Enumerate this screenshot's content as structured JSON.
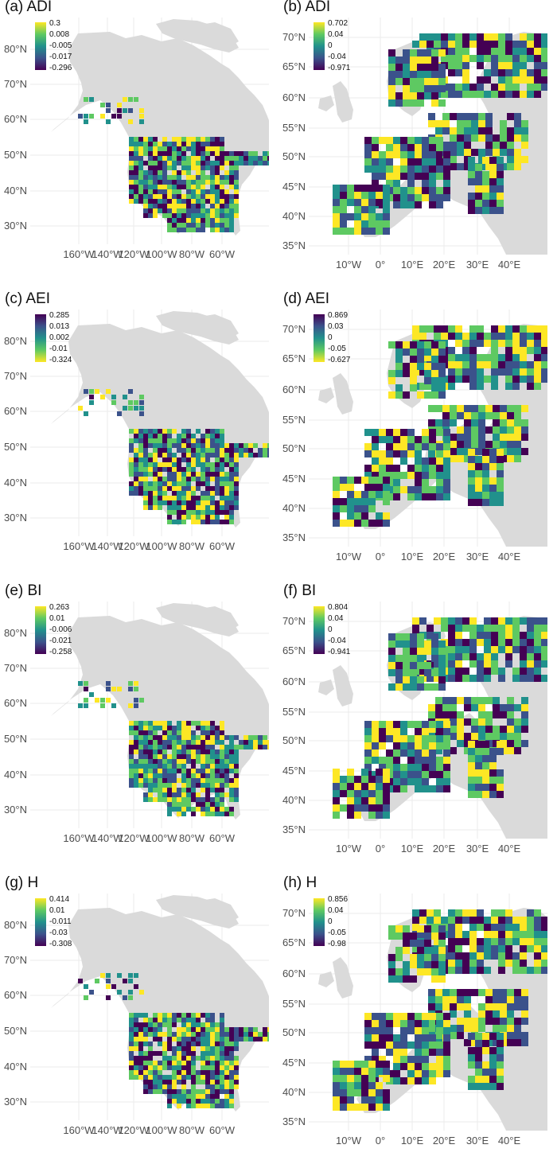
{
  "colors": {
    "land": "#dadada",
    "grid": "#ebebeb",
    "axis_text": "#4d4d4d",
    "viridis": [
      "#440154",
      "#3b528b",
      "#21918c",
      "#5ec962",
      "#fde725"
    ]
  },
  "panels": [
    {
      "id": "a",
      "title": "(a) ADI",
      "region": "na",
      "legend": [
        "0.3",
        "0.008",
        "-0.005",
        "-0.017",
        "-0.296"
      ],
      "reversed": false
    },
    {
      "id": "b",
      "title": "(b) ADI",
      "region": "eu",
      "legend": [
        "0.702",
        "0.04",
        "0",
        "-0.04",
        "-0.971"
      ],
      "reversed": false
    },
    {
      "id": "c",
      "title": "(c) AEI",
      "region": "na",
      "legend": [
        "0.285",
        "0.013",
        "0.002",
        "-0.01",
        "-0.324"
      ],
      "reversed": true
    },
    {
      "id": "d",
      "title": "(d) AEI",
      "region": "eu",
      "legend": [
        "0.869",
        "0.03",
        "0",
        "-0.05",
        "-0.627"
      ],
      "reversed": true
    },
    {
      "id": "e",
      "title": "(e) BI",
      "region": "na",
      "legend": [
        "0.263",
        "0.01",
        "-0.006",
        "-0.021",
        "-0.258"
      ],
      "reversed": false
    },
    {
      "id": "f",
      "title": "(f) BI",
      "region": "eu",
      "legend": [
        "0.804",
        "0.04",
        "0",
        "-0.04",
        "-0.941"
      ],
      "reversed": false
    },
    {
      "id": "g",
      "title": "(g) H",
      "region": "na",
      "legend": [
        "0.414",
        "0.01",
        "-0.011",
        "-0.03",
        "-0.308"
      ],
      "reversed": false
    },
    {
      "id": "h",
      "title": "(h) H",
      "region": "eu",
      "legend": [
        "0.856",
        "0.04",
        "0",
        "-0.05",
        "-0.98"
      ],
      "reversed": false
    }
  ],
  "axes": {
    "na": {
      "x_ticks": [
        "160°W",
        "140°W",
        "120°W",
        "100°W",
        "80°W",
        "60°W"
      ],
      "y_ticks": [
        "80°N",
        "70°N",
        "60°N",
        "50°N",
        "40°N",
        "30°N"
      ]
    },
    "eu": {
      "x_ticks": [
        "10°W",
        "0°",
        "10°E",
        "20°E",
        "30°E",
        "40°E"
      ],
      "y_ticks": [
        "70°N",
        "65°N",
        "60°N",
        "55°N",
        "50°N",
        "45°N",
        "40°N",
        "35°N"
      ]
    }
  }
}
